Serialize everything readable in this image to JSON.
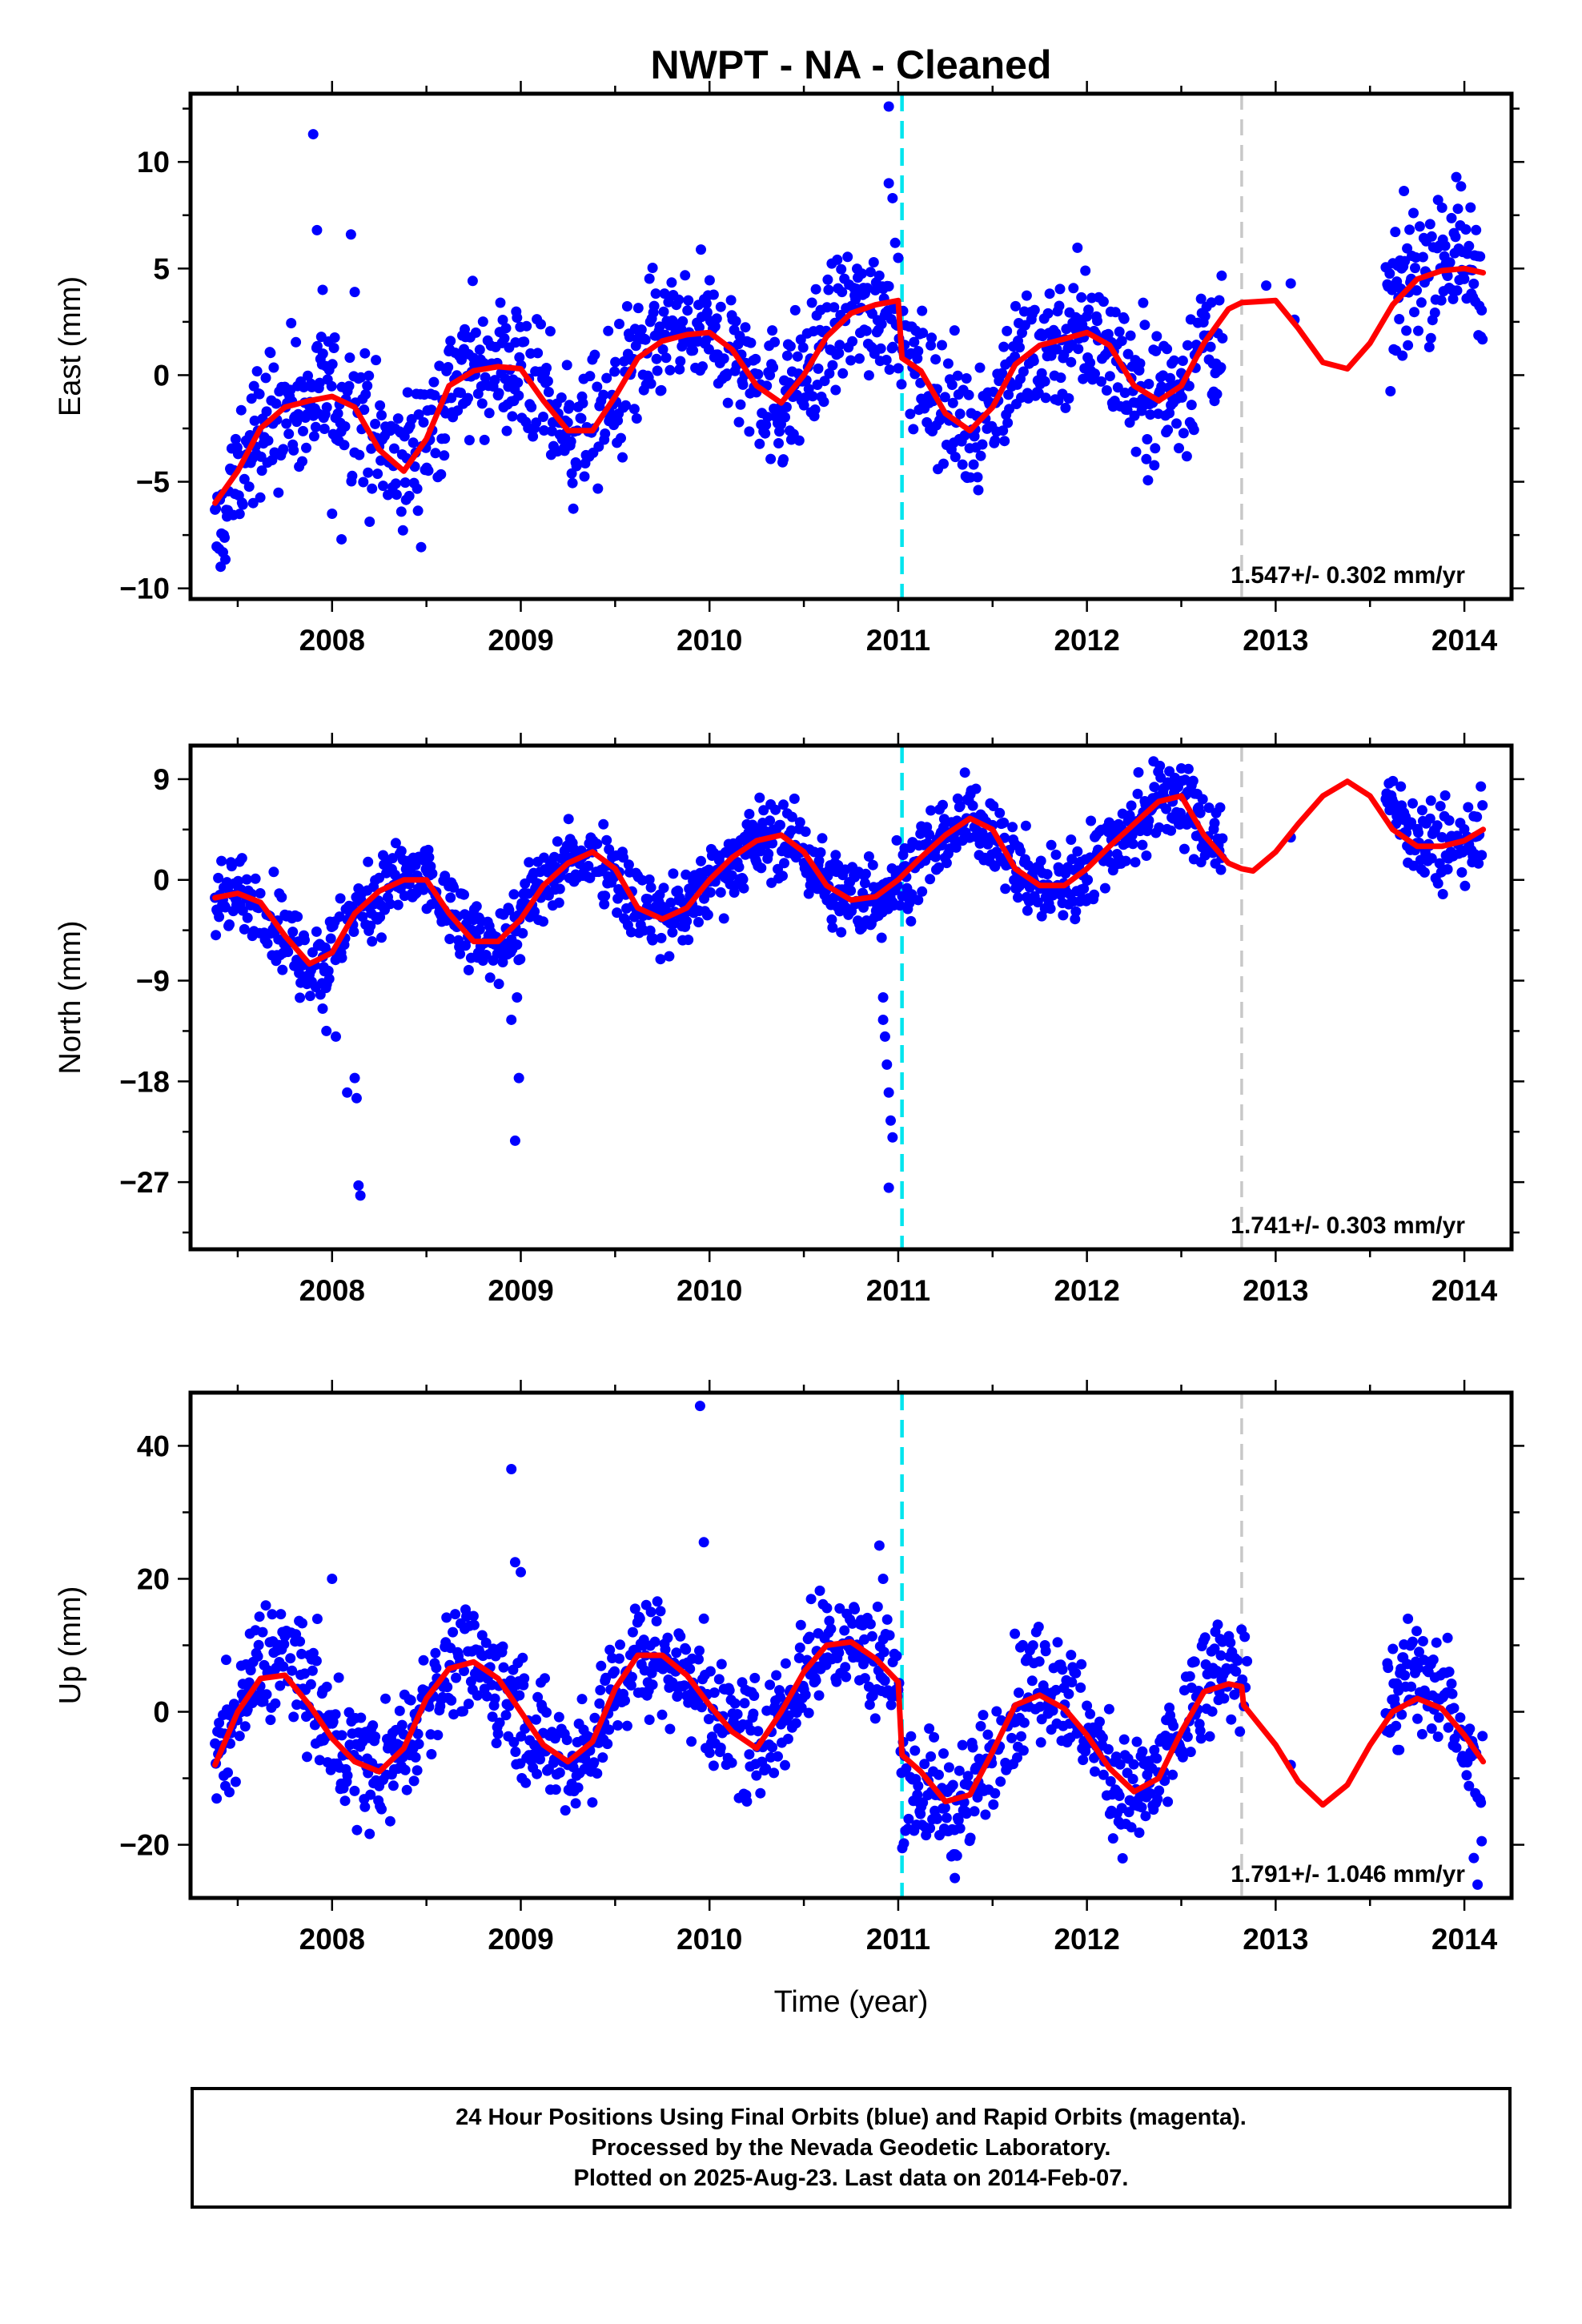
{
  "chart_data": {
    "title": "NWPT  - NA - Cleaned",
    "type": "scatter",
    "xlabel": "Time (year)",
    "xlim": [
      2007.25,
      2014.25
    ],
    "xticks": [
      2008,
      2009,
      2010,
      2011,
      2012,
      2013,
      2014
    ],
    "data_span": [
      2007.38,
      2014.1
    ],
    "last_data": "2014-Feb-07",
    "vertical_lines": [
      {
        "x": 2011.02,
        "color": "#00e5ee",
        "style": "dashed"
      },
      {
        "x": 2012.82,
        "color": "#c8c8c8",
        "style": "dashed"
      }
    ],
    "colors": {
      "points": "#0000ff",
      "model": "#ff0000",
      "frame": "#000000"
    },
    "panels": [
      {
        "ylabel": "East (mm)",
        "ylim": [
          -10.5,
          13.2
        ],
        "yticks": [
          -10,
          -5,
          0,
          5,
          10
        ],
        "rate": "1.547+/- 0.302 mm/yr",
        "model_curve": {
          "x": [
            2007.38,
            2007.5,
            2007.62,
            2007.75,
            2007.88,
            2008.0,
            2008.12,
            2008.25,
            2008.38,
            2008.5,
            2008.62,
            2008.75,
            2008.88,
            2009.0,
            2009.12,
            2009.25,
            2009.38,
            2009.5,
            2009.62,
            2009.75,
            2009.88,
            2010.0,
            2010.12,
            2010.25,
            2010.38,
            2010.5,
            2010.62,
            2010.75,
            2010.88,
            2011.0,
            2011.02,
            2011.12,
            2011.25,
            2011.38,
            2011.5,
            2011.62,
            2011.75,
            2011.88,
            2012.0,
            2012.12,
            2012.25,
            2012.38,
            2012.5,
            2012.62,
            2012.75,
            2012.82,
            2013.0,
            2013.12,
            2013.25,
            2013.38,
            2013.5,
            2013.62,
            2013.75,
            2013.88,
            2014.0,
            2014.1
          ],
          "y": [
            -6.0,
            -4.5,
            -2.5,
            -1.5,
            -1.2,
            -1.0,
            -1.5,
            -3.5,
            -4.5,
            -3.0,
            -0.5,
            0.2,
            0.4,
            0.3,
            -1.2,
            -2.6,
            -2.6,
            -1.0,
            0.8,
            1.6,
            1.9,
            2.0,
            1.2,
            -0.5,
            -1.3,
            0.0,
            1.8,
            2.9,
            3.3,
            3.5,
            0.8,
            0.2,
            -1.8,
            -2.6,
            -1.5,
            0.5,
            1.4,
            1.7,
            2.0,
            1.4,
            -0.5,
            -1.2,
            -0.5,
            1.5,
            3.1,
            3.4,
            3.5,
            2.2,
            0.6,
            0.3,
            1.5,
            3.3,
            4.5,
            4.9,
            5.0,
            4.8
          ]
        },
        "scatter_trend": {
          "x": [
            2007.38,
            2007.5,
            2007.62,
            2007.75,
            2007.88,
            2008.0,
            2008.12,
            2008.25,
            2008.38,
            2008.5,
            2008.62,
            2008.75,
            2008.88,
            2009.0,
            2009.12,
            2009.25,
            2009.38,
            2009.5,
            2009.62,
            2009.75,
            2009.88,
            2010.0,
            2010.12,
            2010.25,
            2010.38,
            2010.5,
            2010.62,
            2010.75,
            2010.88,
            2011.0,
            2011.02,
            2011.12,
            2011.25,
            2011.38,
            2011.5,
            2011.62,
            2011.75,
            2011.88,
            2012.0,
            2012.12,
            2012.25,
            2012.38,
            2012.5,
            2012.62,
            2013.6,
            2013.75,
            2013.88,
            2014.0,
            2014.1
          ],
          "y": [
            -8.0,
            -4.8,
            -2.5,
            -1.5,
            -1.2,
            -1.0,
            -1.5,
            -3.5,
            -4.5,
            -3.0,
            -0.5,
            0.2,
            0.4,
            0.3,
            -1.2,
            -2.6,
            -2.6,
            -1.0,
            0.8,
            1.6,
            1.9,
            2.0,
            1.2,
            -0.5,
            -1.3,
            0.0,
            1.8,
            2.9,
            3.3,
            3.5,
            0.8,
            0.2,
            -1.8,
            -2.6,
            -1.5,
            0.5,
            1.4,
            1.7,
            2.0,
            1.4,
            -0.5,
            -1.2,
            -0.5,
            1.5,
            3.0,
            4.8,
            6.0,
            5.5,
            4.5
          ]
        },
        "scatter_spread": 1.6,
        "outliers": {
          "x": [
            2007.9,
            2007.92,
            2007.95,
            2008.0,
            2008.05,
            2008.1,
            2008.12,
            2010.95,
            2010.95,
            2010.97,
            2011.0,
            2012.95
          ],
          "y": [
            11.3,
            6.8,
            4.0,
            -6.5,
            -7.7,
            6.6,
            3.9,
            12.6,
            9.0,
            8.3,
            5.5,
            4.2
          ]
        },
        "gap": [
          2012.72,
          2013.58
        ],
        "gap_points": {
          "x": [
            2013.08,
            2013.1
          ],
          "y": [
            4.3,
            2.6
          ]
        }
      },
      {
        "ylabel": "North (mm)",
        "ylim": [
          -33,
          12
        ],
        "yticks": [
          -27,
          -18,
          -9,
          0,
          9
        ],
        "rate": "1.741+/- 0.303 mm/yr",
        "model_curve": {
          "x": [
            2007.38,
            2007.5,
            2007.62,
            2007.75,
            2007.88,
            2008.0,
            2008.12,
            2008.25,
            2008.38,
            2008.5,
            2008.62,
            2008.75,
            2008.88,
            2009.0,
            2009.12,
            2009.25,
            2009.38,
            2009.5,
            2009.62,
            2009.75,
            2009.88,
            2010.0,
            2010.12,
            2010.25,
            2010.38,
            2010.5,
            2010.62,
            2010.75,
            2010.88,
            2011.0,
            2011.12,
            2011.25,
            2011.38,
            2011.5,
            2011.62,
            2011.75,
            2011.88,
            2012.0,
            2012.12,
            2012.25,
            2012.38,
            2012.5,
            2012.62,
            2012.75,
            2012.82,
            2012.88,
            2013.0,
            2013.12,
            2013.25,
            2013.38,
            2013.5,
            2013.62,
            2013.75,
            2013.88,
            2014.0,
            2014.1
          ],
          "y": [
            -1.6,
            -1.2,
            -2.0,
            -5.0,
            -7.5,
            -6.5,
            -3.0,
            -1.0,
            0.0,
            0.0,
            -3.0,
            -5.5,
            -5.5,
            -3.5,
            -0.5,
            1.5,
            2.5,
            1.0,
            -2.5,
            -3.5,
            -2.5,
            0.0,
            2.0,
            3.5,
            4.0,
            2.5,
            -0.5,
            -1.8,
            -1.5,
            0.0,
            2.0,
            4.0,
            5.5,
            4.5,
            1.0,
            -0.5,
            -0.5,
            1.0,
            3.0,
            5.0,
            7.0,
            7.5,
            4.0,
            1.5,
            1.0,
            0.8,
            2.5,
            5.0,
            7.5,
            8.8,
            7.5,
            4.5,
            3.0,
            3.0,
            3.5,
            4.5
          ]
        },
        "scatter_trend": {
          "x": [
            2007.38,
            2007.5,
            2007.62,
            2007.75,
            2007.88,
            2008.0,
            2008.12,
            2008.25,
            2008.38,
            2008.5,
            2008.62,
            2008.75,
            2008.88,
            2009.0,
            2009.12,
            2009.25,
            2009.38,
            2009.5,
            2009.62,
            2009.75,
            2009.88,
            2010.0,
            2010.12,
            2010.25,
            2010.38,
            2010.5,
            2010.62,
            2010.75,
            2010.88,
            2011.0,
            2011.12,
            2011.25,
            2011.38,
            2011.5,
            2011.62,
            2011.75,
            2011.88,
            2012.0,
            2012.12,
            2012.25,
            2012.38,
            2012.5,
            2012.62,
            2013.6,
            2013.75,
            2013.88,
            2014.0,
            2014.1
          ],
          "y": [
            -1.6,
            -1.2,
            -2.0,
            -5.0,
            -7.5,
            -6.5,
            -3.0,
            -1.0,
            0.0,
            0.0,
            -3.0,
            -5.5,
            -5.5,
            -3.5,
            -0.5,
            1.5,
            2.5,
            1.0,
            -2.5,
            -3.5,
            -2.5,
            0.0,
            2.0,
            3.5,
            4.0,
            2.5,
            -0.5,
            -1.8,
            -1.5,
            0.0,
            2.0,
            4.0,
            5.5,
            4.5,
            1.0,
            -0.5,
            -0.5,
            1.0,
            3.0,
            5.0,
            7.0,
            7.5,
            4.0,
            7.0,
            4.0,
            2.5,
            3.0,
            4.5
          ]
        },
        "scatter_spread": 1.8,
        "outliers": {
          "x": [
            2007.95,
            2007.97,
            2008.02,
            2008.08,
            2008.12,
            2008.13,
            2008.15,
            2008.14,
            2008.95,
            2008.98,
            2008.99,
            2008.97,
            2010.92,
            2010.92,
            2010.93,
            2010.94,
            2010.95,
            2010.96,
            2010.97,
            2010.95
          ],
          "y": [
            -11.5,
            -13.5,
            -14.0,
            -19.0,
            -17.7,
            -19.5,
            -28.2,
            -27.3,
            -12.5,
            -10.5,
            -17.7,
            -23.3,
            -10.5,
            -12.5,
            -14.0,
            -16.5,
            -19.0,
            -21.5,
            -23.0,
            -27.5
          ]
        },
        "gap": [
          2012.72,
          2013.58
        ],
        "gap_points": {
          "x": [
            2013.08
          ],
          "y": [
            3.8
          ]
        }
      },
      {
        "ylabel": "Up (mm)",
        "ylim": [
          -28,
          48
        ],
        "yticks": [
          -20,
          0,
          20,
          40
        ],
        "rate": "1.791+/- 1.046 mm/yr",
        "model_curve": {
          "x": [
            2007.38,
            2007.5,
            2007.62,
            2007.75,
            2007.88,
            2008.0,
            2008.12,
            2008.25,
            2008.38,
            2008.5,
            2008.62,
            2008.75,
            2008.88,
            2009.0,
            2009.12,
            2009.25,
            2009.38,
            2009.5,
            2009.62,
            2009.75,
            2009.88,
            2010.0,
            2010.12,
            2010.25,
            2010.38,
            2010.5,
            2010.62,
            2010.75,
            2010.88,
            2011.0,
            2011.02,
            2011.12,
            2011.25,
            2011.38,
            2011.5,
            2011.62,
            2011.75,
            2011.88,
            2012.0,
            2012.12,
            2012.25,
            2012.38,
            2012.5,
            2012.62,
            2012.75,
            2012.82,
            2012.83,
            2013.0,
            2013.12,
            2013.25,
            2013.38,
            2013.5,
            2013.62,
            2013.75,
            2013.88,
            2014.0,
            2014.1
          ],
          "y": [
            -8.0,
            0.0,
            5.0,
            5.5,
            1.0,
            -4.0,
            -7.5,
            -9.0,
            -5.5,
            2.0,
            6.5,
            7.5,
            5.0,
            0.0,
            -5.0,
            -7.5,
            -4.5,
            3.5,
            8.5,
            8.5,
            5.5,
            1.0,
            -3.0,
            -5.5,
            0.0,
            6.0,
            10.0,
            10.5,
            8.0,
            4.5,
            -6.5,
            -9.0,
            -13.5,
            -12.5,
            -6.0,
            1.0,
            2.5,
            0.5,
            -3.5,
            -8.5,
            -12.0,
            -10.0,
            -3.0,
            3.0,
            4.2,
            3.8,
            1.0,
            -5.0,
            -10.5,
            -14.0,
            -11.0,
            -5.0,
            0.0,
            2.0,
            0.5,
            -3.5,
            -7.5
          ]
        },
        "scatter_trend": {
          "x": [
            2007.38,
            2007.5,
            2007.62,
            2007.75,
            2007.88,
            2008.0,
            2008.12,
            2008.25,
            2008.38,
            2008.5,
            2008.62,
            2008.75,
            2008.88,
            2009.0,
            2009.12,
            2009.25,
            2009.38,
            2009.5,
            2009.62,
            2009.75,
            2009.88,
            2010.0,
            2010.12,
            2010.25,
            2010.38,
            2010.5,
            2010.62,
            2010.75,
            2010.88,
            2011.0,
            2011.02,
            2011.12,
            2011.25,
            2011.38,
            2011.5,
            2011.62,
            2011.75,
            2011.88,
            2012.0,
            2012.12,
            2012.25,
            2012.38,
            2012.5,
            2012.62,
            2012.75,
            2013.6,
            2013.75,
            2013.88,
            2014.0,
            2014.1
          ],
          "y": [
            -8.0,
            0.0,
            7.0,
            8.5,
            3.0,
            -4.0,
            -7.5,
            -9.0,
            -5.5,
            2.0,
            6.5,
            7.5,
            5.0,
            0.0,
            -5.0,
            -7.5,
            -4.5,
            3.5,
            8.5,
            8.5,
            5.5,
            1.0,
            -3.0,
            -5.5,
            0.0,
            6.0,
            10.0,
            10.5,
            8.0,
            4.5,
            -9.0,
            -12.0,
            -14.0,
            -12.5,
            -6.0,
            1.0,
            5.5,
            3.5,
            -3.5,
            -8.5,
            -14.0,
            -10.0,
            -3.0,
            3.0,
            7.0,
            2.0,
            5.0,
            3.0,
            -3.5,
            -12.0
          ]
        },
        "scatter_spread": 4.5,
        "outliers": {
          "x": [
            2008.95,
            2008.97,
            2009.0,
            2009.95,
            2009.97,
            2010.9,
            2010.92,
            2008.0,
            2009.97,
            2014.05,
            2014.07,
            2011.3
          ],
          "y": [
            36.5,
            22.5,
            21.0,
            46.0,
            25.5,
            25.0,
            20.0,
            20.0,
            14.0,
            -22.0,
            -26.0,
            -25.0
          ]
        },
        "gap": [
          2012.85,
          2013.58
        ],
        "gap_points": {
          "x": [
            2013.08
          ],
          "y": [
            -8.0
          ]
        }
      }
    ]
  },
  "footer": {
    "line1": "24 Hour Positions Using Final Orbits (blue) and Rapid Orbits (magenta).",
    "line2": "Processed by the Nevada Geodetic Laboratory.",
    "line3": "Plotted on 2025-Aug-23. Last data on 2014-Feb-07."
  }
}
